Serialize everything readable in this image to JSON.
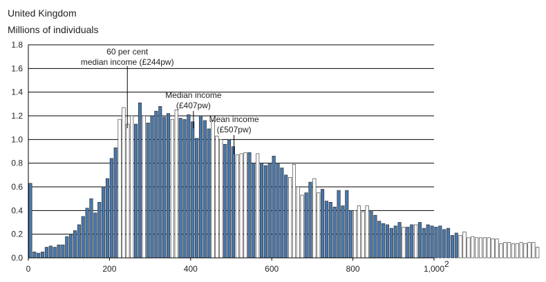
{
  "header": {
    "region": "United Kingdom",
    "units": "Millions of individuals"
  },
  "chart_data": {
    "type": "bar",
    "title": "",
    "xlabel": "",
    "ylabel": "Millions of individuals",
    "xlim": [
      0,
      1000
    ],
    "ylim": [
      0,
      1.8
    ],
    "y_ticks": [
      "0.0",
      "0.2",
      "0.4",
      "0.6",
      "0.8",
      "1.0",
      "1.2",
      "1.4",
      "1.6",
      "1.8"
    ],
    "x_ticks": [
      "0",
      "200",
      "400",
      "600",
      "800",
      "1,000"
    ],
    "x_tick_values": [
      0,
      200,
      400,
      600,
      800,
      1000
    ],
    "x_tick_suffix": "2",
    "bin_width": 10,
    "grid": "horizontal",
    "colors": {
      "filled": "#4a77aa",
      "outline": "#222222",
      "hollow": "#ffffff"
    },
    "values": [
      0.63,
      0.05,
      0.04,
      0.05,
      0.09,
      0.1,
      0.09,
      0.11,
      0.11,
      0.18,
      0.2,
      0.23,
      0.28,
      0.35,
      0.42,
      0.5,
      0.38,
      0.47,
      0.6,
      0.67,
      0.84,
      0.93,
      1.17,
      1.27,
      1.13,
      1.2,
      1.13,
      1.31,
      1.2,
      1.14,
      1.2,
      1.24,
      1.28,
      1.19,
      1.22,
      1.17,
      1.25,
      1.18,
      1.17,
      1.21,
      1.15,
      1.01,
      1.2,
      1.16,
      1.09,
      1.16,
      1.03,
      1.0,
      0.96,
      1.0,
      0.94,
      0.87,
      0.88,
      0.89,
      0.89,
      0.8,
      0.88,
      0.8,
      0.78,
      0.8,
      0.86,
      0.8,
      0.76,
      0.7,
      0.68,
      0.79,
      0.6,
      0.53,
      0.55,
      0.64,
      0.67,
      0.55,
      0.58,
      0.48,
      0.47,
      0.43,
      0.57,
      0.44,
      0.57,
      0.4,
      0.4,
      0.44,
      0.39,
      0.44,
      0.4,
      0.36,
      0.31,
      0.29,
      0.28,
      0.25,
      0.27,
      0.3,
      0.26,
      0.26,
      0.28,
      0.28,
      0.3,
      0.25,
      0.28,
      0.27,
      0.26,
      0.27,
      0.24,
      0.25,
      0.19,
      0.21,
      0.19,
      0.22,
      0.17,
      0.18,
      0.17,
      0.17,
      0.17,
      0.17,
      0.16,
      0.16,
      0.12,
      0.13,
      0.13,
      0.12,
      0.12,
      0.13,
      0.12,
      0.13,
      0.13,
      0.09
    ],
    "filled_ranges": [
      [
        0,
        21
      ],
      [
        26,
        27
      ],
      [
        29,
        34
      ],
      [
        37,
        38
      ],
      [
        39,
        41
      ],
      [
        42,
        44
      ],
      [
        48,
        50
      ],
      [
        54,
        55
      ],
      [
        57,
        59
      ],
      [
        60,
        63
      ],
      [
        68,
        69
      ],
      [
        72,
        74
      ],
      [
        75,
        76
      ],
      [
        77,
        79
      ],
      [
        84,
        85
      ],
      [
        86,
        91
      ],
      [
        93,
        94
      ],
      [
        96,
        97
      ],
      [
        98,
        99
      ],
      [
        100,
        103
      ],
      [
        104,
        105
      ]
    ],
    "annotations": [
      {
        "lines": [
          "60 per cent",
          "median income (£244pw)"
        ],
        "x": 244
      },
      {
        "lines": [
          "Median income",
          "(£407pw)"
        ],
        "x": 407
      },
      {
        "lines": [
          "Mean income",
          "(£507pw)"
        ],
        "x": 507
      }
    ]
  }
}
